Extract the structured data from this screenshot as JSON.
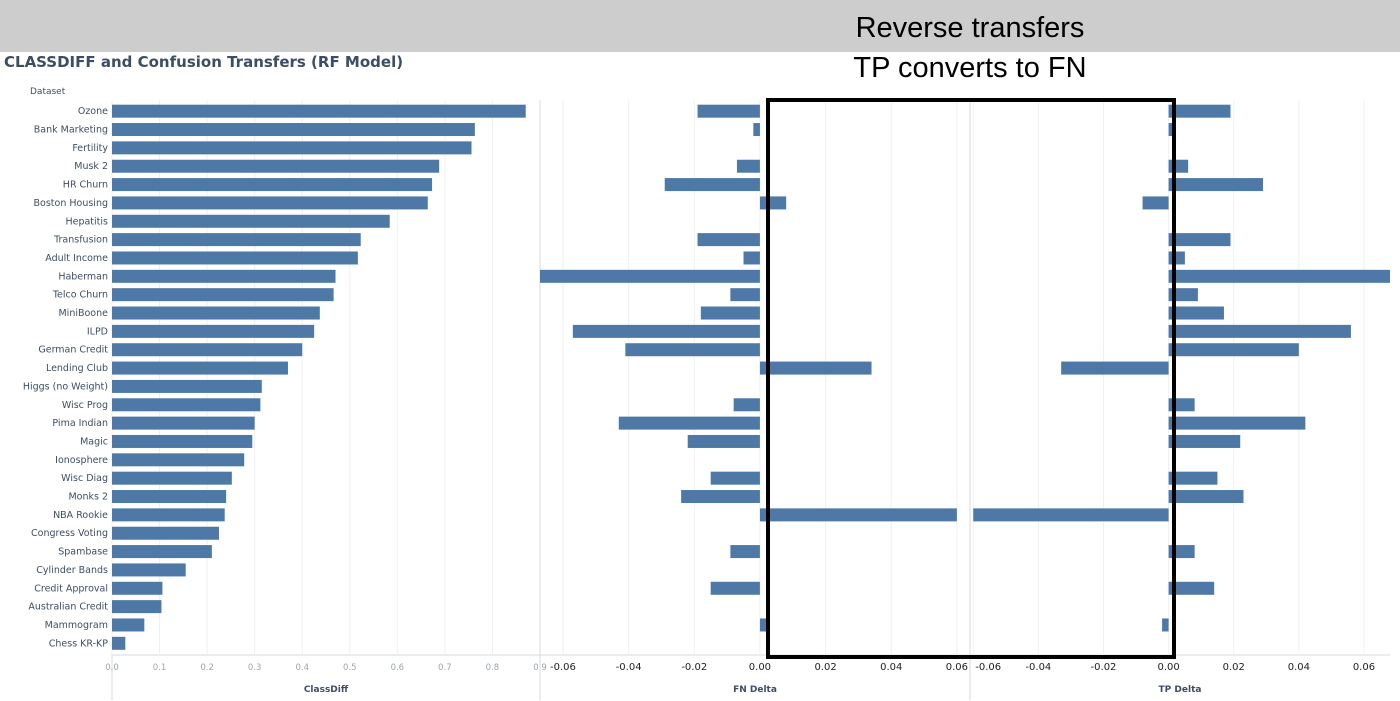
{
  "banner": {
    "line1": "Reverse transfers",
    "line2": "TP converts to FN"
  },
  "colors": {
    "bar": "#4e79a7",
    "banner_bg": "#cdcdcd",
    "text": "#3d4e63",
    "highlight_border": "#000000"
  },
  "chart_data": {
    "type": "bar",
    "orientation": "horizontal",
    "title": "CLASSDIFF and Confusion Transfers (RF Model)",
    "row_header": "Dataset",
    "categories": [
      "Ozone",
      "Bank Marketing",
      "Fertility",
      "Musk 2",
      "HR Churn",
      "Boston Housing",
      "Hepatitis",
      "Transfusion",
      "Adult Income",
      "Haberman",
      "Telco Churn",
      "MiniBoone",
      "ILPD",
      "German Credit",
      "Lending Club",
      "Higgs (no Weight)",
      "Wisc Prog",
      "Pima Indian",
      "Magic",
      "Ionosphere",
      "Wisc Diag",
      "Monks 2",
      "NBA Rookie",
      "Congress Voting",
      "Spambase",
      "Cylinder Bands",
      "Credit Approval",
      "Australian Credit",
      "Mammogram",
      "Chess KR-KP"
    ],
    "panels": [
      {
        "xlabel": "ClassDiff",
        "xlim": [
          0,
          0.9
        ],
        "ticks": [
          0.0,
          0.1,
          0.2,
          0.3,
          0.4,
          0.5,
          0.6,
          0.7,
          0.8,
          0.9
        ],
        "tick_labels": [
          "0.0",
          "0.1",
          "0.2",
          "0.3",
          "0.4",
          "0.5",
          "0.6",
          "0.7",
          "0.8",
          "0.9"
        ],
        "values": [
          0.87,
          0.763,
          0.756,
          0.688,
          0.673,
          0.664,
          0.584,
          0.523,
          0.517,
          0.47,
          0.466,
          0.437,
          0.425,
          0.4,
          0.37,
          0.315,
          0.312,
          0.3,
          0.295,
          0.278,
          0.252,
          0.24,
          0.237,
          0.225,
          0.21,
          0.155,
          0.106,
          0.104,
          0.068,
          0.028
        ]
      },
      {
        "xlabel": "FN Delta",
        "xlim": [
          -0.067,
          0.064
        ],
        "ticks": [
          -0.06,
          -0.04,
          -0.02,
          0.0,
          0.02,
          0.04,
          0.06
        ],
        "tick_labels": [
          "-0.06",
          "-0.04",
          "-0.02",
          "0.00",
          "0.02",
          "0.04",
          "0.06"
        ],
        "values": [
          -0.019,
          -0.002,
          null,
          -0.007,
          -0.029,
          0.008,
          null,
          -0.019,
          -0.005,
          -0.067,
          -0.009,
          -0.018,
          -0.057,
          -0.041,
          0.034,
          null,
          -0.008,
          -0.043,
          -0.022,
          null,
          -0.015,
          -0.024,
          0.06,
          null,
          -0.009,
          null,
          -0.015,
          null,
          0.002,
          null
        ]
      },
      {
        "xlabel": "TP Delta",
        "xlim": [
          -0.061,
          0.068
        ],
        "ticks": [
          -0.06,
          -0.04,
          -0.02,
          0.0,
          0.02,
          0.04,
          0.06
        ],
        "tick_labels": [
          "-0.06",
          "-0.04",
          "-0.02",
          "0.00",
          "0.02",
          "0.04",
          "0.06"
        ],
        "values": [
          0.019,
          0.002,
          null,
          0.006,
          0.029,
          -0.008,
          null,
          0.019,
          0.005,
          0.068,
          0.009,
          0.017,
          0.056,
          0.04,
          -0.033,
          null,
          0.008,
          0.042,
          0.022,
          null,
          0.015,
          0.023,
          -0.06,
          null,
          0.008,
          null,
          0.014,
          null,
          -0.002,
          null
        ]
      }
    ]
  }
}
